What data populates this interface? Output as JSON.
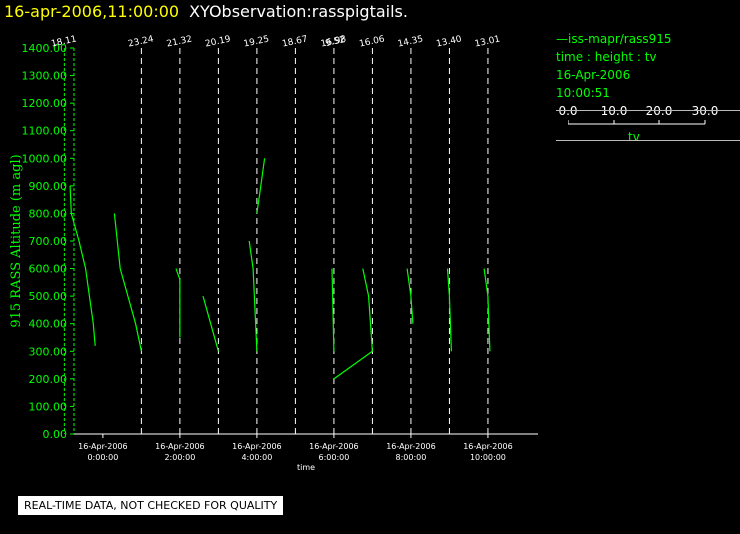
{
  "header": {
    "date": "16-apr-2006,11:00:00",
    "title": "XYObservation:rasspigtails."
  },
  "legend": {
    "series_line": "—iss-mapr/rass915",
    "line2": "time : height : tv",
    "line3": "16-Apr-2006",
    "line4": "10:00:51",
    "scale_ticks": [
      "0.0",
      "10.0",
      "20.0",
      "30.0"
    ],
    "scale_label": "tv"
  },
  "notice": "REAL-TIME DATA, NOT CHECKED FOR QUALITY",
  "colors": {
    "trace": "#00ff00",
    "axis": "#ffffff",
    "header_date": "#ffff00",
    "background": "#000000"
  },
  "chart_data": {
    "type": "line",
    "ylabel": "915 RASS Altitude (m agl)",
    "xlabel": "time",
    "ylim": [
      0,
      1400
    ],
    "xlim_hours": [
      -0.75,
      11.3
    ],
    "yticks": [
      "0.00",
      "100.00",
      "200.00",
      "300.00",
      "400.00",
      "500.00",
      "600.00",
      "700.00",
      "800.00",
      "900.00",
      "1000.00",
      "1100.00",
      "1200.00",
      "1300.00",
      "1400.00"
    ],
    "xticks": [
      {
        "hour": 0,
        "date": "16-Apr-2006",
        "time": "0:00:00"
      },
      {
        "hour": 2,
        "date": "16-Apr-2006",
        "time": "2:00:00"
      },
      {
        "hour": 4,
        "date": "16-Apr-2006",
        "time": "4:00:00"
      },
      {
        "hour": 6,
        "date": "16-Apr-2006",
        "time": "6:00:00"
      },
      {
        "hour": 8,
        "date": "16-Apr-2006",
        "time": "8:00:00"
      },
      {
        "hour": 10,
        "date": "16-Apr-2006",
        "time": "10:00:00"
      }
    ],
    "profiles": [
      {
        "hour": -1.0,
        "label": "18.11",
        "points": [
          [
            -0.85,
            900
          ],
          [
            -0.82,
            800
          ],
          [
            -0.62,
            700
          ],
          [
            -0.45,
            600
          ],
          [
            -0.35,
            500
          ],
          [
            -0.25,
            400
          ],
          [
            -0.2,
            320
          ]
        ]
      },
      {
        "hour": 1.0,
        "label": "23.24",
        "points": [
          [
            0.3,
            800
          ],
          [
            0.45,
            600
          ],
          [
            0.65,
            500
          ],
          [
            0.85,
            400
          ],
          [
            1.0,
            300
          ]
        ]
      },
      {
        "hour": 2.0,
        "label": "21.32",
        "points": [
          [
            1.9,
            600
          ],
          [
            2.0,
            560
          ],
          [
            2.0,
            350
          ]
        ]
      },
      {
        "hour": 3.0,
        "label": "20.19",
        "points": [
          [
            2.6,
            500
          ],
          [
            2.8,
            400
          ],
          [
            3.0,
            300
          ]
        ]
      },
      {
        "hour": 4.0,
        "label": "19.25",
        "points": [
          [
            3.8,
            700
          ],
          [
            3.9,
            600
          ],
          [
            4.0,
            300
          ]
        ]
      },
      {
        "hour": 5.0,
        "label": "18.67",
        "points": [
          [
            4.0,
            800
          ],
          [
            4.1,
            900
          ],
          [
            4.2,
            1000
          ]
        ]
      },
      {
        "hour": 6.0,
        "label": "16.98",
        "points": [
          [
            5.95,
            600
          ],
          [
            6.0,
            300
          ]
        ]
      },
      {
        "hour": 7.0,
        "label": "9.52",
        "points": [
          [
            6.0,
            200
          ],
          [
            7.0,
            300
          ]
        ]
      },
      {
        "hour": 7.0,
        "label": "16.06",
        "points": [
          [
            6.75,
            600
          ],
          [
            6.9,
            500
          ],
          [
            7.0,
            300
          ]
        ]
      },
      {
        "hour": 8.0,
        "label": "14.35",
        "points": [
          [
            7.9,
            600
          ],
          [
            8.0,
            500
          ],
          [
            8.05,
            400
          ]
        ]
      },
      {
        "hour": 9.0,
        "label": "13.40",
        "points": [
          [
            8.95,
            600
          ],
          [
            9.0,
            500
          ],
          [
            9.05,
            300
          ]
        ]
      },
      {
        "hour": 10.0,
        "label": "13.01",
        "points": [
          [
            9.9,
            600
          ],
          [
            10.0,
            500
          ],
          [
            10.05,
            300
          ]
        ]
      }
    ]
  }
}
